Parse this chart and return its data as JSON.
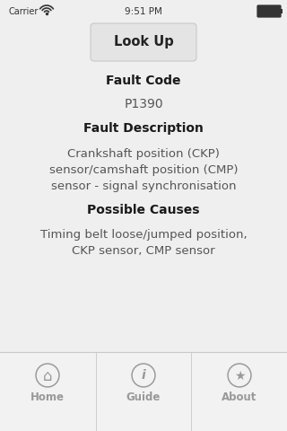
{
  "bg_color": "#efefef",
  "tab_bar_color": "#f2f2f2",
  "tab_bar_border_color": "#c8c8c8",
  "status_bar_text": "9:51 PM",
  "status_carrier": "Carrier",
  "button_label": "Look Up",
  "button_bg": "#e4e4e4",
  "button_border": "#c8c8c8",
  "section1_label": "Fault Code",
  "fault_code": "P1390",
  "section2_label": "Fault Description",
  "fault_desc_line1": "Crankshaft position (CKP)",
  "fault_desc_line2": "sensor/camshaft position (CMP)",
  "fault_desc_line3": "sensor - signal synchronisation",
  "section3_label": "Possible Causes",
  "causes_line1": "Timing belt loose/jumped position,",
  "causes_line2": "CKP sensor, CMP sensor",
  "tab_items": [
    "Home",
    "Guide",
    "About"
  ],
  "tab_icon_color": "#999999",
  "section_label_color": "#1a1a1a",
  "normal_text_color": "#555555",
  "status_text_color": "#333333",
  "btn_text_color": "#222222"
}
